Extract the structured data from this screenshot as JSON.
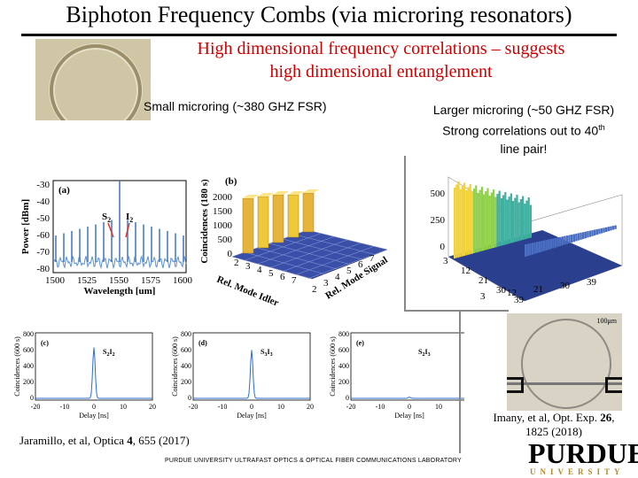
{
  "title": "Biphoton Frequency Combs (via microring resonators)",
  "subtitle_line1": "High dimensional frequency correlations – suggests",
  "subtitle_line2": "high dimensional entanglement",
  "small_label": "Small microring (~380 GHZ FSR)",
  "large_label_line1": "Larger microring (~50 GHZ FSR)",
  "large_label_line2": "Strong correlations out to 40",
  "large_label_sup": "th",
  "large_label_line3": "line pair!",
  "panel_a": {
    "label": "(a)",
    "ylabel": "Power [dBm]",
    "xlabel": "Wavelength [um]",
    "yticks": [
      "-30",
      "-40",
      "-50",
      "-60",
      "-70",
      "-80"
    ],
    "xticks": [
      "1500",
      "1525",
      "1550",
      "1575",
      "1600"
    ],
    "s_label": "S",
    "s_sub": "2",
    "i_label": "I",
    "i_sub": "2"
  },
  "panel_b": {
    "label": "(b)",
    "zlabel": "Coincidences (180 s)",
    "zticks": [
      "2000",
      "1500",
      "1000",
      "500",
      "0"
    ],
    "idler_label": "Rel. Mode Idler",
    "signal_label": "Rel. Mode Signal",
    "idler_ticks": [
      "2",
      "3",
      "4",
      "5",
      "6",
      "7"
    ],
    "signal_ticks": [
      "2",
      "3",
      "4",
      "5",
      "6",
      "7"
    ]
  },
  "panel_big": {
    "zticks": [
      "500",
      "250",
      "0"
    ],
    "left_ticks": [
      "3",
      "12",
      "21",
      "30",
      "39"
    ],
    "right_ticks": [
      "39",
      "30",
      "21",
      "12",
      "3"
    ]
  },
  "coinc_panels": [
    {
      "label": "(c)",
      "tag": "S",
      "tag_a": "2",
      "tag_b": "I",
      "tag_c": "2",
      "peak": 0.82
    },
    {
      "label": "(d)",
      "tag": "S",
      "tag_a": "3",
      "tag_b": "I",
      "tag_c": "3",
      "peak": 0.78
    },
    {
      "label": "(e)",
      "tag": "S",
      "tag_a": "2",
      "tag_b": "I",
      "tag_c": "3",
      "peak": 0.02
    }
  ],
  "coinc_ylabel": "Coincidences (600 s)",
  "coinc_xlabel": "Delay [ns]",
  "coinc_yticks": [
    "800",
    "600",
    "400",
    "200",
    "0"
  ],
  "coinc_xticks": [
    "-20",
    "-10",
    "0",
    "10",
    "20"
  ],
  "scale_bar": "100μm",
  "ref_left_a": "Jaramillo, et al, Optica ",
  "ref_left_b": "4",
  "ref_left_c": ", 655 (2017)",
  "ref_right_a": "Imany, et al, Opt. Exp. ",
  "ref_right_b": "26",
  "ref_right_c": ",",
  "ref_right_line2": "1825 (2018)",
  "footer": "PURDUE UNIVERSITY ULTRAFAST OPTICS & OPTICAL FIBER COMMUNICATIONS LABORATORY",
  "logo_main": "PURDUE",
  "logo_sub": "UNIVERSITY"
}
